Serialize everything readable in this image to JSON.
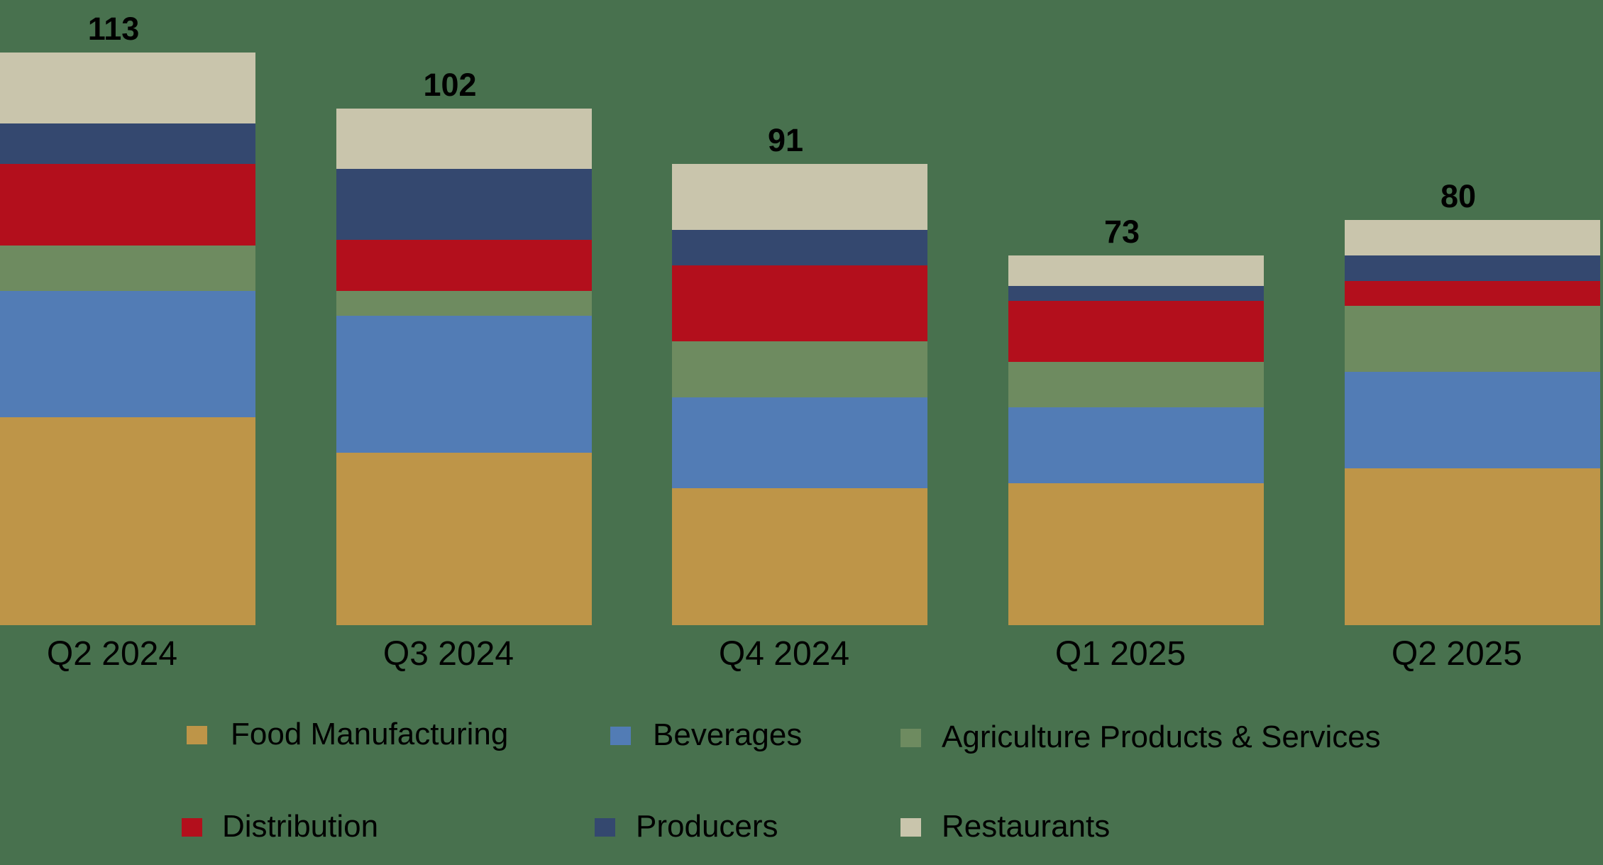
{
  "chart_data": {
    "type": "bar",
    "stacked": true,
    "title": "",
    "xlabel": "",
    "ylabel": "",
    "grid": false,
    "legend_position": "bottom",
    "categories": [
      "Q2 2024",
      "Q3 2024",
      "Q4 2024",
      "Q1 2025",
      "Q2 2025"
    ],
    "totals": [
      113,
      102,
      91,
      73,
      80
    ],
    "series": [
      {
        "name": "Food Manufacturing",
        "color": "#BE9548",
        "values": [
          41,
          34,
          27,
          28,
          31
        ]
      },
      {
        "name": "Beverages",
        "color": "#527CB5",
        "values": [
          25,
          27,
          18,
          15,
          19
        ]
      },
      {
        "name": "Agriculture Products & Services",
        "color": "#6E8B60",
        "values": [
          9,
          5,
          11,
          9,
          13
        ]
      },
      {
        "name": "Distribution",
        "color": "#B30F1C",
        "values": [
          16,
          10,
          15,
          12,
          5
        ]
      },
      {
        "name": "Producers",
        "color": "#34486F",
        "values": [
          8,
          14,
          7,
          3,
          5
        ]
      },
      {
        "name": "Restaurants",
        "color": "#C9C5AC",
        "values": [
          14,
          12,
          13,
          6,
          7
        ]
      }
    ],
    "ylim": [
      0,
      113
    ]
  },
  "colors": {
    "background": "#48714E",
    "text": "#000000"
  },
  "legend": {
    "items": [
      {
        "label": "Food Manufacturing",
        "color": "#BE9548"
      },
      {
        "label": "Beverages",
        "color": "#527CB5"
      },
      {
        "label": "Agriculture Products & Services",
        "color": "#6E8B60"
      },
      {
        "label": "Distribution",
        "color": "#B30F1C"
      },
      {
        "label": "Producers",
        "color": "#34486F"
      },
      {
        "label": "Restaurants",
        "color": "#C9C5AC"
      }
    ]
  }
}
